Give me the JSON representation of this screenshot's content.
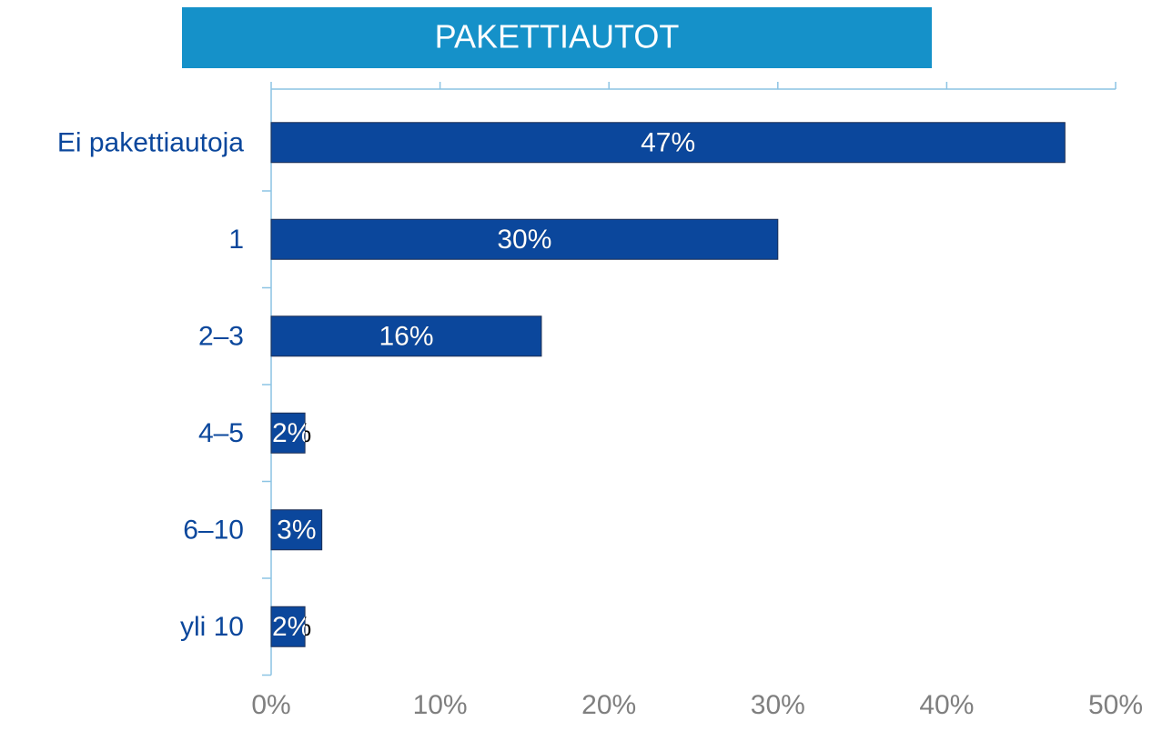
{
  "chart_data": {
    "type": "bar",
    "orientation": "horizontal",
    "title": "PAKETTIAUTOT",
    "categories": [
      "Ei pakettiautoja",
      "1",
      "2–3",
      "4–5",
      "6–10",
      "yli 10"
    ],
    "values": [
      47,
      30,
      16,
      2,
      3,
      2
    ],
    "value_labels": [
      "47%",
      "30%",
      "16%",
      "2%",
      "3%",
      "2%"
    ],
    "color": "#0b479c",
    "xlim": [
      0,
      50
    ],
    "xticks": [
      {
        "value": 0,
        "label": "0%"
      },
      {
        "value": 10,
        "label": "10%"
      },
      {
        "value": 20,
        "label": "20%"
      },
      {
        "value": 30,
        "label": "30%"
      },
      {
        "value": 40,
        "label": "40%"
      },
      {
        "value": 50,
        "label": "50%"
      }
    ]
  }
}
